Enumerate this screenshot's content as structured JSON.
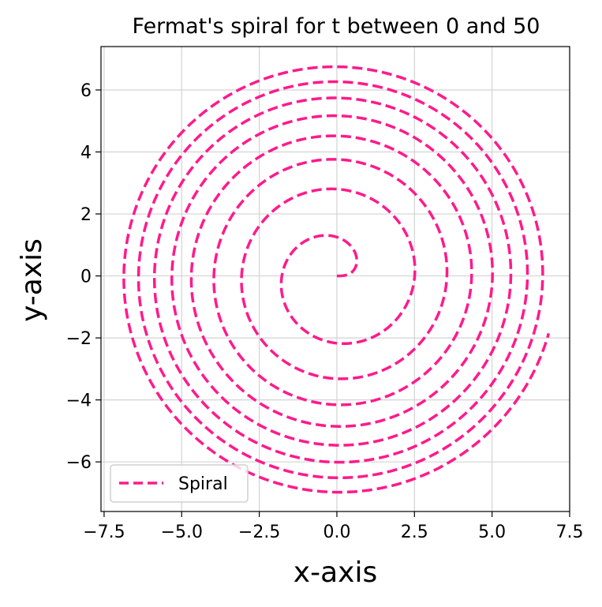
{
  "chart_data": {
    "type": "line",
    "title": "Fermat's spiral for t between 0 and 50",
    "xlabel": "x-axis",
    "ylabel": "y-axis",
    "xlim": [
      -7.6,
      7.5
    ],
    "ylim": [
      -7.6,
      7.4
    ],
    "xticks": [
      -7.5,
      -5.0,
      -2.5,
      0.0,
      2.5,
      5.0,
      7.5
    ],
    "xtick_labels": [
      "−7.5",
      "−5.0",
      "−2.5",
      "0.0",
      "2.5",
      "5.0",
      "7.5"
    ],
    "yticks": [
      -6,
      -4,
      -2,
      0,
      2,
      4,
      6
    ],
    "ytick_labels": [
      "−6",
      "−4",
      "−2",
      "0",
      "2",
      "4",
      "6"
    ],
    "grid": true,
    "legend_position": "lower-left",
    "series": [
      {
        "name": "Spiral",
        "function": "x = sqrt(t)*cos(t), y = sqrt(t)*sin(t)",
        "t_range": [
          0,
          50
        ],
        "line_style": "dashed",
        "color": "#ff1a8c"
      }
    ]
  }
}
